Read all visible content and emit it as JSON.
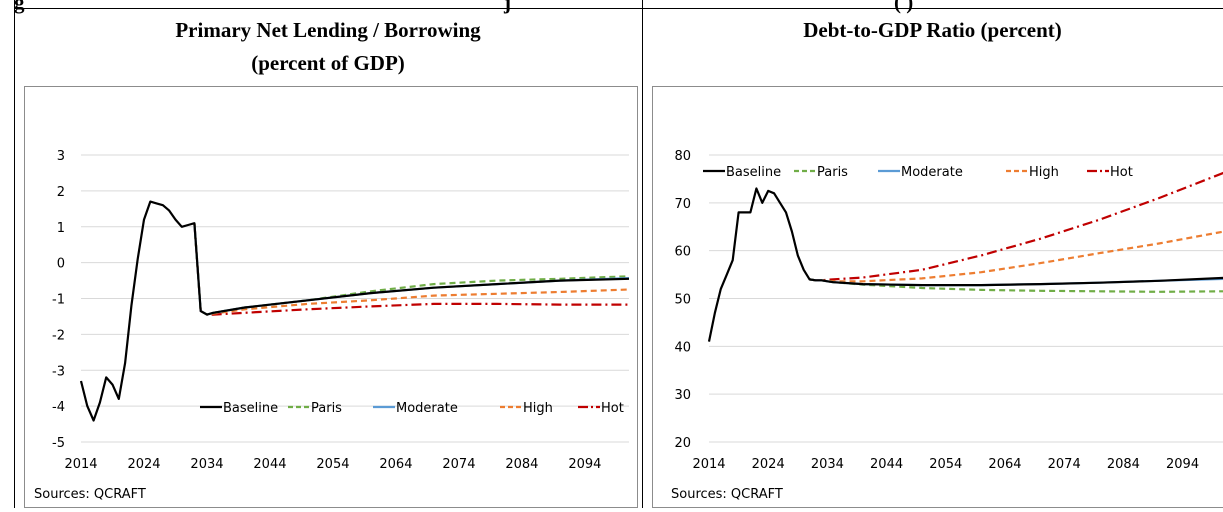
{
  "page": {
    "heading_fragment_left": "g",
    "heading_fragment_mid": "j",
    "heading_fragment_right": "( )"
  },
  "panels": [
    {
      "title_line1": "Primary Net Lending / Borrowing",
      "title_line2": "(percent of GDP)",
      "source": "Sources: QCRAFT"
    },
    {
      "title_line1": "Debt-to-GDP Ratio (percent)",
      "title_line2": "",
      "source": "Sources: QCRAFT"
    }
  ],
  "colors": {
    "Baseline": "#000000",
    "Paris": "#70ad47",
    "Moderate": "#5b9bd5",
    "High": "#ed7d31",
    "Hot": "#c00000"
  },
  "chart_data": [
    {
      "type": "line",
      "title": "Primary Net Lending / Borrowing (percent of GDP)",
      "xlabel": "",
      "ylabel": "",
      "xlim": [
        2014,
        2101
      ],
      "ylim": [
        -5,
        3
      ],
      "xticks": [
        2014,
        2024,
        2034,
        2044,
        2054,
        2064,
        2074,
        2084,
        2094
      ],
      "yticks": [
        3,
        2,
        1,
        0,
        -1,
        -2,
        -3,
        -4,
        -5
      ],
      "grid": "horizontal",
      "legend_position": "bottom-right",
      "series": [
        {
          "name": "Baseline",
          "style": "solid",
          "x": [
            2014,
            2015,
            2016,
            2017,
            2018,
            2019,
            2020,
            2021,
            2022,
            2023,
            2024,
            2025,
            2026,
            2027,
            2028,
            2029,
            2030,
            2031,
            2032,
            2033,
            2034,
            2035,
            2040,
            2050,
            2060,
            2070,
            2080,
            2090,
            2101
          ],
          "y": [
            -3.3,
            -4.0,
            -4.4,
            -3.9,
            -3.2,
            -3.4,
            -3.8,
            -2.8,
            -1.2,
            0.1,
            1.2,
            1.7,
            1.65,
            1.6,
            1.45,
            1.2,
            1.0,
            1.05,
            1.1,
            -1.35,
            -1.45,
            -1.4,
            -1.25,
            -1.05,
            -0.85,
            -0.7,
            -0.6,
            -0.5,
            -0.45
          ]
        },
        {
          "name": "Paris",
          "style": "dashed",
          "x": [
            2032,
            2033,
            2034,
            2035,
            2040,
            2050,
            2060,
            2070,
            2080,
            2090,
            2101
          ],
          "y": [
            1.1,
            -1.35,
            -1.45,
            -1.4,
            -1.25,
            -1.05,
            -0.8,
            -0.6,
            -0.5,
            -0.45,
            -0.38
          ]
        },
        {
          "name": "Moderate",
          "style": "solid",
          "x": [
            2032,
            2033,
            2034,
            2035,
            2040,
            2050,
            2060,
            2070,
            2080,
            2090,
            2101
          ],
          "y": [
            1.1,
            -1.35,
            -1.45,
            -1.4,
            -1.25,
            -1.05,
            -0.85,
            -0.7,
            -0.6,
            -0.5,
            -0.43
          ]
        },
        {
          "name": "High",
          "style": "dashed",
          "x": [
            2032,
            2033,
            2034,
            2035,
            2040,
            2050,
            2060,
            2070,
            2080,
            2090,
            2101
          ],
          "y": [
            1.1,
            -1.35,
            -1.45,
            -1.42,
            -1.3,
            -1.15,
            -1.05,
            -0.92,
            -0.87,
            -0.82,
            -0.75
          ]
        },
        {
          "name": "Hot",
          "style": "dashdot",
          "x": [
            2032,
            2033,
            2034,
            2035,
            2040,
            2050,
            2060,
            2070,
            2080,
            2090,
            2101
          ],
          "y": [
            1.1,
            -1.35,
            -1.45,
            -1.45,
            -1.4,
            -1.3,
            -1.22,
            -1.15,
            -1.15,
            -1.17,
            -1.17
          ]
        }
      ]
    },
    {
      "type": "line",
      "title": "Debt-to-GDP Ratio (percent)",
      "xlabel": "",
      "ylabel": "",
      "xlim": [
        2014,
        2101
      ],
      "ylim": [
        20,
        80
      ],
      "xticks": [
        2014,
        2024,
        2034,
        2044,
        2054,
        2064,
        2074,
        2084,
        2094
      ],
      "yticks": [
        80,
        70,
        60,
        50,
        40,
        30,
        20
      ],
      "grid": "horizontal",
      "legend_position": "top-left",
      "series": [
        {
          "name": "Baseline",
          "style": "solid",
          "x": [
            2014,
            2015,
            2016,
            2017,
            2018,
            2019,
            2020,
            2021,
            2022,
            2023,
            2024,
            2025,
            2026,
            2027,
            2028,
            2029,
            2030,
            2031,
            2032,
            2033,
            2034,
            2035,
            2040,
            2050,
            2060,
            2070,
            2080,
            2090,
            2101
          ],
          "y": [
            41,
            47,
            52,
            55,
            58,
            68,
            68,
            68,
            73,
            70,
            72.5,
            72,
            70,
            68,
            64,
            59,
            56,
            54,
            53.8,
            53.8,
            53.6,
            53.4,
            53.0,
            52.8,
            52.8,
            53.0,
            53.3,
            53.7,
            54.3
          ]
        },
        {
          "name": "Paris",
          "style": "dashed",
          "x": [
            2031,
            2032,
            2033,
            2034,
            2035,
            2040,
            2050,
            2060,
            2070,
            2080,
            2090,
            2101
          ],
          "y": [
            54,
            53.8,
            53.8,
            53.6,
            53.4,
            52.9,
            52.2,
            51.8,
            51.6,
            51.5,
            51.4,
            51.5
          ]
        },
        {
          "name": "Moderate",
          "style": "solid",
          "x": [
            2031,
            2032,
            2033,
            2034,
            2035,
            2040,
            2050,
            2060,
            2070,
            2080,
            2090,
            2101
          ],
          "y": [
            54,
            53.8,
            53.8,
            53.6,
            53.4,
            53.0,
            52.8,
            52.8,
            53.0,
            53.3,
            53.7,
            54.1
          ]
        },
        {
          "name": "High",
          "style": "dashed",
          "x": [
            2031,
            2032,
            2033,
            2034,
            2035,
            2040,
            2050,
            2060,
            2070,
            2080,
            2090,
            2101
          ],
          "y": [
            54,
            53.8,
            53.8,
            53.7,
            53.6,
            53.6,
            54.2,
            55.5,
            57.4,
            59.5,
            61.5,
            64
          ]
        },
        {
          "name": "Hot",
          "style": "dashdot",
          "x": [
            2031,
            2032,
            2033,
            2034,
            2035,
            2040,
            2050,
            2060,
            2070,
            2080,
            2090,
            2101
          ],
          "y": [
            54,
            53.8,
            53.8,
            53.9,
            54.0,
            54.4,
            56.0,
            59.0,
            62.5,
            66.5,
            71,
            76.3
          ]
        }
      ]
    }
  ]
}
